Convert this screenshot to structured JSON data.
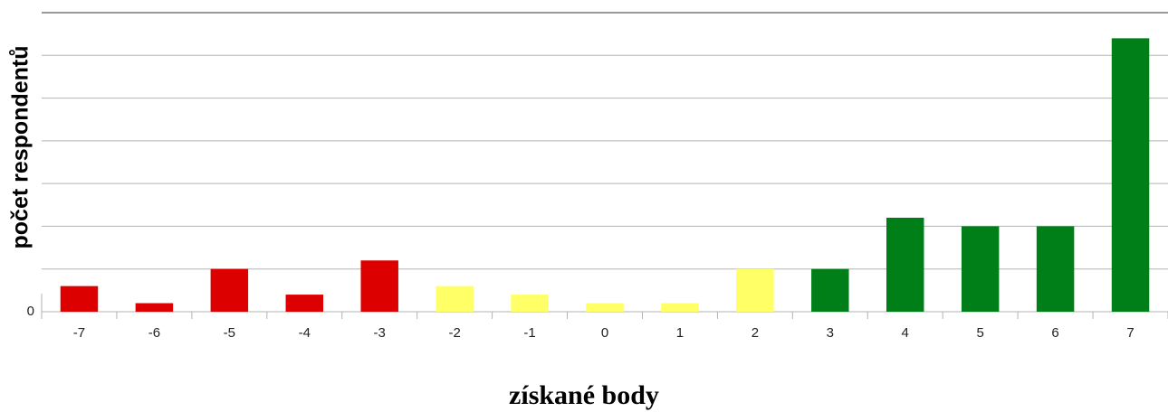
{
  "chart_data": {
    "type": "bar",
    "x_label": "získané body",
    "y_label": "počet respondentů",
    "categories": [
      "-7",
      "-6",
      "-5",
      "-4",
      "-3",
      "-2",
      "-1",
      "0",
      "1",
      "2",
      "3",
      "4",
      "5",
      "6",
      "7"
    ],
    "values": [
      3,
      1,
      5,
      2,
      6,
      3,
      2,
      1,
      1,
      5,
      5,
      11,
      10,
      10,
      32
    ],
    "colors": [
      "#dd0000",
      "#dd0000",
      "#dd0000",
      "#dd0000",
      "#dd0000",
      "#ffff66",
      "#ffff66",
      "#ffff66",
      "#ffff66",
      "#ffff66",
      "#007f19",
      "#007f19",
      "#007f19",
      "#007f19",
      "#007f19"
    ],
    "ylim": [
      0,
      35
    ],
    "yticks": [
      0,
      {
        "value": 5
      },
      {
        "value": 10
      },
      {
        "value": 15
      },
      {
        "value": 20
      },
      {
        "value": 25
      },
      {
        "value": 30
      },
      {
        "value": 35
      }
    ],
    "grid": true
  }
}
